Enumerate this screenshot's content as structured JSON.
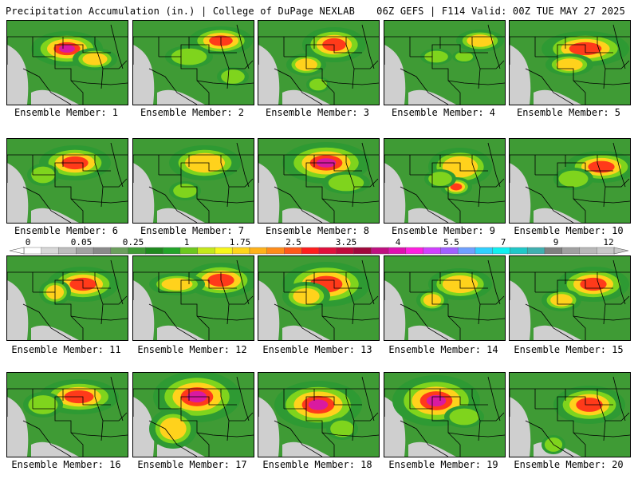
{
  "header": {
    "title_left": "Precipitation Accumulation (in.) | College of DuPage NEXLAB",
    "title_right": "06Z GEFS | F114 Valid: 00Z TUE MAY 27 2025"
  },
  "colorbar": {
    "labels": [
      "0",
      "0.05",
      "0.25",
      "1",
      "1.75",
      "2.5",
      "3.25",
      "4",
      "5.5",
      "7",
      "9",
      "12"
    ],
    "colors": [
      "#ffffff",
      "#d8d8d8",
      "#bdbdbd",
      "#a2a2a2",
      "#8a8a8a",
      "#6b9f5d",
      "#3f9b35",
      "#1f8a1f",
      "#22a52a",
      "#6cc81e",
      "#c4e81b",
      "#f7f71a",
      "#ffd51a",
      "#ffb21a",
      "#ff8c1a",
      "#ff5a1a",
      "#ff1e1e",
      "#e0103c",
      "#c00a3c",
      "#a0083c",
      "#c01080",
      "#e010b0",
      "#ff20e0",
      "#d040ff",
      "#a060ff",
      "#6fa0ff",
      "#30d0ff",
      "#10f0f0",
      "#20c8c8",
      "#40b0b0",
      "#808080",
      "#a0a0a0",
      "#b8b8b8",
      "#c8c8c8"
    ]
  },
  "members": [
    {
      "label": "Ensemble Member: 1"
    },
    {
      "label": "Ensemble Member: 2"
    },
    {
      "label": "Ensemble Member: 3"
    },
    {
      "label": "Ensemble Member: 4"
    },
    {
      "label": "Ensemble Member: 5"
    },
    {
      "label": "Ensemble Member: 6"
    },
    {
      "label": "Ensemble Member: 7"
    },
    {
      "label": "Ensemble Member: 8"
    },
    {
      "label": "Ensemble Member: 9"
    },
    {
      "label": "Ensemble Member: 10"
    },
    {
      "label": "Ensemble Member: 11"
    },
    {
      "label": "Ensemble Member: 12"
    },
    {
      "label": "Ensemble Member: 13"
    },
    {
      "label": "Ensemble Member: 14"
    },
    {
      "label": "Ensemble Member: 15"
    },
    {
      "label": "Ensemble Member: 16"
    },
    {
      "label": "Ensemble Member: 17"
    },
    {
      "label": "Ensemble Member: 18"
    },
    {
      "label": "Ensemble Member: 19"
    },
    {
      "label": "Ensemble Member: 20"
    }
  ]
}
